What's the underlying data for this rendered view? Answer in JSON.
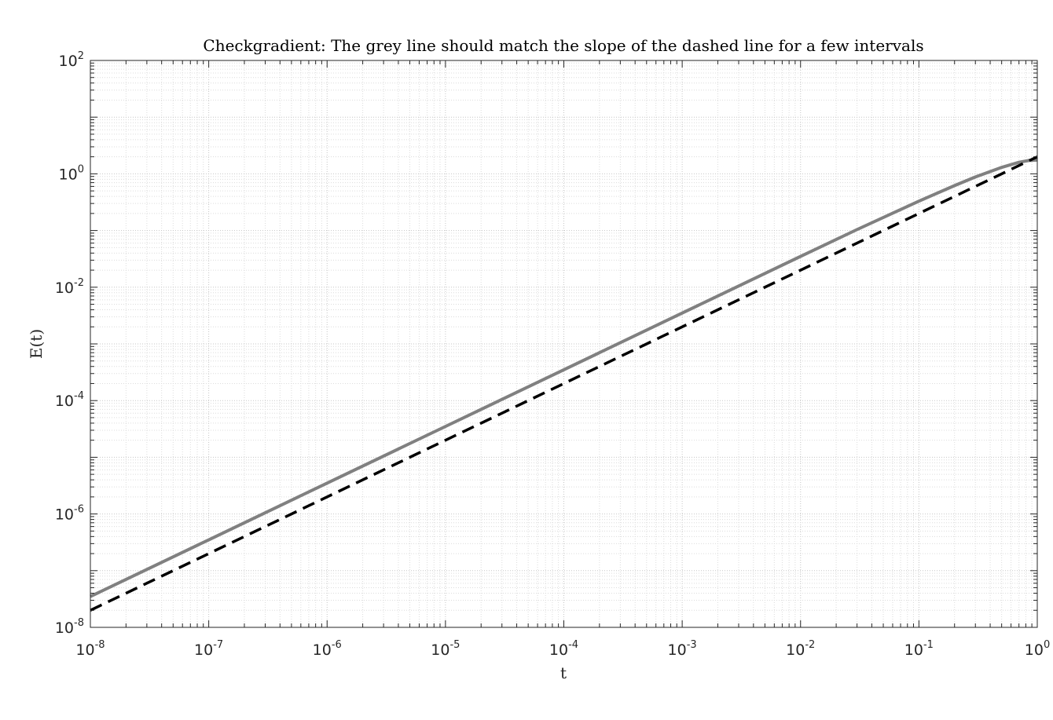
{
  "chart_data": {
    "type": "line",
    "title": "Checkgradient: The grey line should match the slope of the dashed line for a few intervals",
    "xlabel": "t",
    "ylabel": "E(t)",
    "xscale": "log",
    "yscale": "log",
    "xlim": [
      1e-08,
      1
    ],
    "ylim": [
      1e-08,
      100
    ],
    "grid": "on (major and minor, dotted)",
    "x_ticks": [
      {
        "base": "10",
        "exp": "-8",
        "value": 1e-08
      },
      {
        "base": "10",
        "exp": "-7",
        "value": 1e-07
      },
      {
        "base": "10",
        "exp": "-6",
        "value": 1e-06
      },
      {
        "base": "10",
        "exp": "-5",
        "value": 1e-05
      },
      {
        "base": "10",
        "exp": "-4",
        "value": 0.0001
      },
      {
        "base": "10",
        "exp": "-3",
        "value": 0.001
      },
      {
        "base": "10",
        "exp": "-2",
        "value": 0.01
      },
      {
        "base": "10",
        "exp": "-1",
        "value": 0.1
      },
      {
        "base": "10",
        "exp": "0",
        "value": 1
      }
    ],
    "y_ticks": [
      {
        "base": "10",
        "exp": "-8",
        "value": 1e-08
      },
      {
        "base": "10",
        "exp": "-6",
        "value": 1e-06
      },
      {
        "base": "10",
        "exp": "-4",
        "value": 0.0001
      },
      {
        "base": "10",
        "exp": "-2",
        "value": 0.01
      },
      {
        "base": "10",
        "exp": "0",
        "value": 1
      },
      {
        "base": "10",
        "exp": "2",
        "value": 100
      }
    ],
    "series": [
      {
        "style": "solid",
        "color": "#808080",
        "x": [
          1e-08,
          1e-07,
          1e-06,
          1e-05,
          0.0001,
          0.001,
          0.01,
          0.03,
          0.1,
          0.2,
          0.3,
          0.5,
          0.7,
          0.85,
          1
        ],
        "y": [
          3.5e-08,
          3.5e-07,
          3.5e-06,
          3.5e-05,
          0.00035,
          0.0035,
          0.035,
          0.104,
          0.33,
          0.62,
          0.88,
          1.3,
          1.6,
          1.72,
          1.75
        ]
      },
      {
        "style": "dashed",
        "color": "#000000",
        "x": [
          1e-08,
          1
        ],
        "y": [
          2e-08,
          2
        ]
      }
    ]
  }
}
